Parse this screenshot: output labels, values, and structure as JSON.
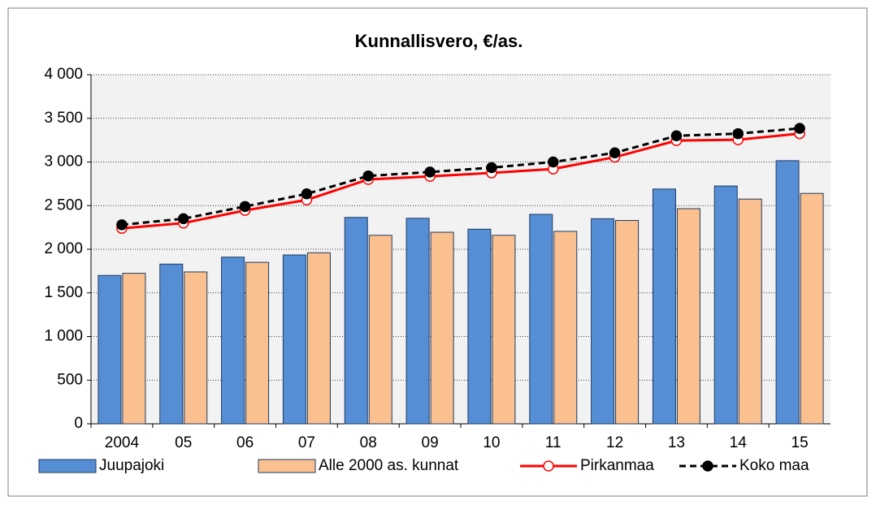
{
  "chart_data": {
    "type": "bar",
    "title": "Kunnallisvero, €/as.",
    "categories": [
      "2004",
      "05",
      "06",
      "07",
      "08",
      "09",
      "10",
      "11",
      "12",
      "13",
      "14",
      "15"
    ],
    "series": [
      {
        "name": "Juupajoki",
        "kind": "bar",
        "color": "#558ed5",
        "values": [
          1700,
          1830,
          1910,
          1935,
          2365,
          2355,
          2230,
          2400,
          2350,
          2690,
          2725,
          3015
        ]
      },
      {
        "name": "Alle 2000 as. kunnat",
        "kind": "bar",
        "color": "#fac090",
        "values": [
          1725,
          1740,
          1850,
          1960,
          2160,
          2195,
          2160,
          2205,
          2330,
          2465,
          2575,
          2640
        ]
      },
      {
        "name": "Pirkanmaa",
        "kind": "line",
        "color": "#ff0000",
        "dashed": false,
        "marker_fill": "#ffffff",
        "values": [
          2240,
          2300,
          2445,
          2565,
          2800,
          2835,
          2875,
          2920,
          3055,
          3245,
          3255,
          3325
        ]
      },
      {
        "name": "Koko maa",
        "kind": "line",
        "color": "#000000",
        "dashed": true,
        "marker_fill": "#000000",
        "values": [
          2280,
          2350,
          2490,
          2635,
          2840,
          2885,
          2935,
          3000,
          3105,
          3300,
          3325,
          3385
        ]
      }
    ],
    "ylim": [
      0,
      4000
    ],
    "yticks": [
      0,
      500,
      {
        "value": 1000,
        "label": "1 000"
      },
      {
        "value": 1500,
        "label": "1 500"
      },
      {
        "value": 2000,
        "label": "2 000"
      },
      {
        "value": 2500,
        "label": "2 500"
      },
      {
        "value": 3000,
        "label": "3 000"
      },
      {
        "value": 3500,
        "label": "3 500"
      },
      {
        "value": 4000,
        "label": "4 000"
      }
    ],
    "grid": true,
    "legend": "bottom"
  }
}
